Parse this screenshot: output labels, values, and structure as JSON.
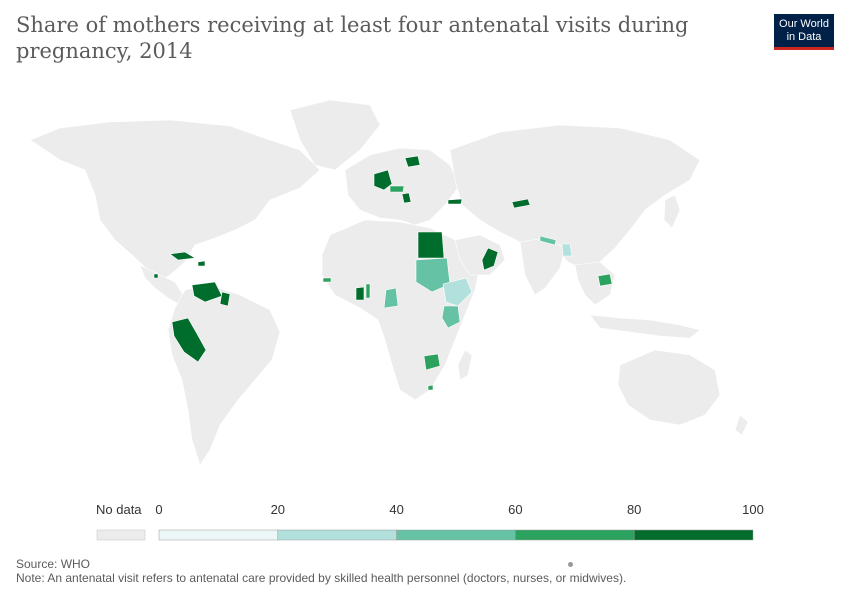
{
  "header": {
    "title": "Share of mothers receiving at least four antenatal visits during pregnancy, 2014"
  },
  "logo": {
    "line1": "Our World",
    "line2": "in Data"
  },
  "legend": {
    "no_data_label": "No data",
    "ticks": [
      "0",
      "20",
      "40",
      "60",
      "80",
      "100"
    ],
    "colors": [
      "#eef7f7",
      "#b2e0dc",
      "#66c2a4",
      "#2ca25f",
      "#006d2c"
    ],
    "no_data_color": "#ececec"
  },
  "map_data": {
    "regions": [
      {
        "name": "Poland",
        "bin": 4
      },
      {
        "name": "Germany",
        "bin": 4
      },
      {
        "name": "Austria",
        "bin": 3
      },
      {
        "name": "Serbia",
        "bin": 4
      },
      {
        "name": "Georgia",
        "bin": 4
      },
      {
        "name": "Kyrgyzstan",
        "bin": 4
      },
      {
        "name": "Egypt",
        "bin": 4
      },
      {
        "name": "Oman",
        "bin": 4
      },
      {
        "name": "Sudan",
        "bin": 2
      },
      {
        "name": "Ethiopia",
        "bin": 1
      },
      {
        "name": "Kenya",
        "bin": 2
      },
      {
        "name": "Cameroon",
        "bin": 2
      },
      {
        "name": "Ghana",
        "bin": 4
      },
      {
        "name": "Togo",
        "bin": 3
      },
      {
        "name": "Gambia",
        "bin": 3
      },
      {
        "name": "Zimbabwe",
        "bin": 3
      },
      {
        "name": "Swaziland",
        "bin": 3
      },
      {
        "name": "Nepal",
        "bin": 2
      },
      {
        "name": "Bangladesh",
        "bin": 1
      },
      {
        "name": "Cambodia",
        "bin": 3
      },
      {
        "name": "Cuba",
        "bin": 4
      },
      {
        "name": "Dominican Republic",
        "bin": 4
      },
      {
        "name": "Venezuela",
        "bin": 4
      },
      {
        "name": "Guyana",
        "bin": 4
      },
      {
        "name": "Peru",
        "bin": 4
      },
      {
        "name": "Belize",
        "bin": 4
      }
    ]
  },
  "footer": {
    "source": "Source: WHO",
    "note": "Note: An antenatal visit refers to antenatal care provided by skilled health personnel (doctors, nurses, or midwives)."
  }
}
